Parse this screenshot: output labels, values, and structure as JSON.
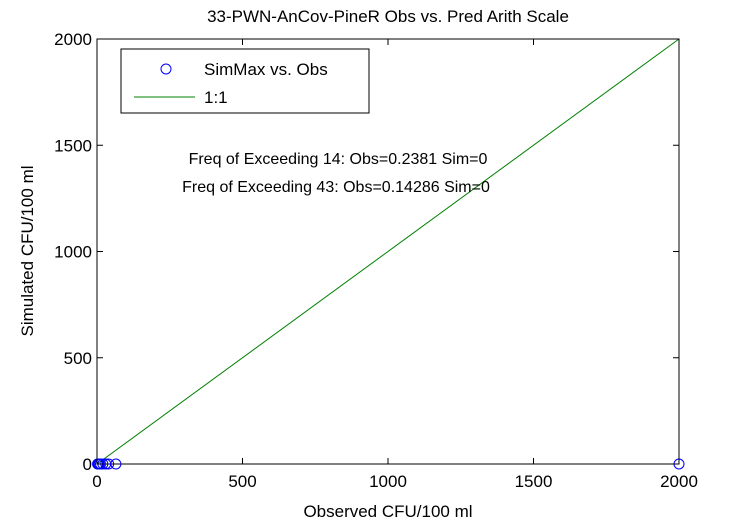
{
  "chart_data": {
    "type": "scatter",
    "title": "33-PWN-AnCov-PineR Obs vs. Pred Arith Scale",
    "xlabel": "Observed CFU/100 ml",
    "ylabel": "Simulated CFU/100 ml",
    "xlim": [
      0,
      2000
    ],
    "ylim": [
      0,
      2000
    ],
    "xticks": [
      0,
      500,
      1000,
      1500,
      2000
    ],
    "yticks": [
      0,
      500,
      1000,
      1500,
      2000
    ],
    "xtick_labels": [
      "0",
      "500",
      "1000",
      "1500",
      "2000"
    ],
    "ytick_labels": [
      "0",
      "500",
      "1000",
      "1500",
      "2000"
    ],
    "grid": false,
    "legend_position": "top-left",
    "series": [
      {
        "name": "SimMax vs. Obs",
        "marker": "circle",
        "color": "#0000ff",
        "x": [
          2,
          5,
          8,
          12,
          20,
          30,
          40,
          65,
          2000
        ],
        "y": [
          0,
          0,
          0,
          0,
          0,
          0,
          0,
          0,
          0
        ]
      },
      {
        "name": "1:1",
        "line": true,
        "color": "#008000",
        "x": [
          0,
          2000
        ],
        "y": [
          0,
          2000
        ]
      }
    ],
    "annotations": [
      "Freq of Exceeding 14: Obs=0.2381 Sim=0",
      "Freq of Exceeding 43: Obs=0.14286 Sim=0"
    ]
  }
}
